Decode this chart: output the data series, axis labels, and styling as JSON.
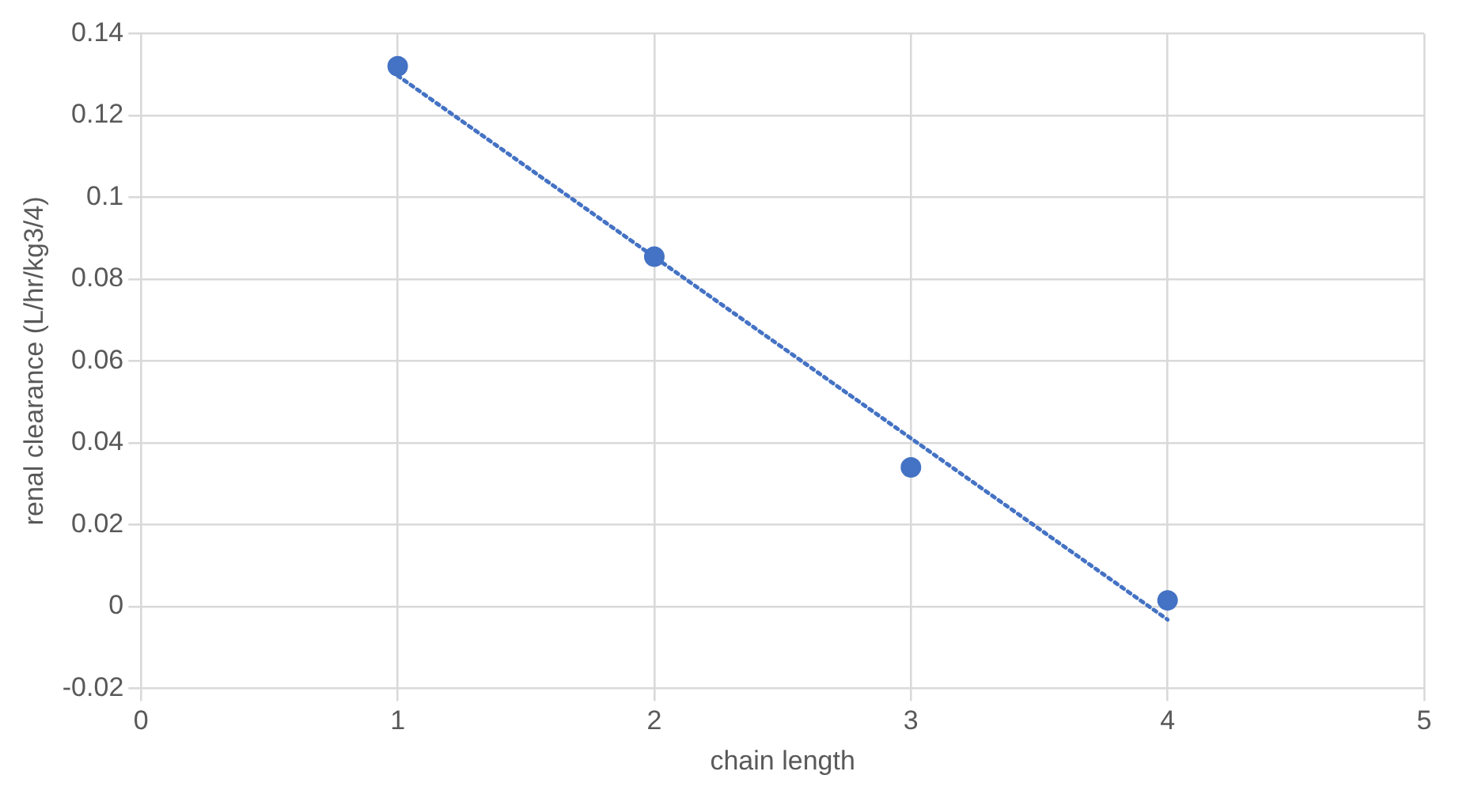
{
  "chart_data": {
    "type": "scatter",
    "xlabel": "chain length",
    "ylabel": "renal clearance (L/hr/kg3/4)",
    "x": [
      1,
      2,
      3,
      4
    ],
    "marker": "circle",
    "grid": true,
    "legend": false,
    "series": [
      {
        "color": "#4472c4",
        "values": [
          0.132,
          0.0855,
          0.034,
          0.0015
        ]
      },
      {
        "type": "line",
        "color": "#4472c4",
        "x": [
          1,
          4
        ],
        "values": [
          0.1297,
          -0.0032
        ],
        "line_style": "dotted",
        "marker": "none"
      }
    ],
    "xlim": [
      0,
      5
    ],
    "xticks": [
      0,
      1,
      2,
      3,
      4,
      5
    ],
    "ylim": [
      -0.02,
      0.14
    ],
    "yticks": [
      -0.02,
      0,
      0.02,
      0.04,
      0.06,
      0.08,
      0.1,
      0.12,
      0.14
    ]
  }
}
